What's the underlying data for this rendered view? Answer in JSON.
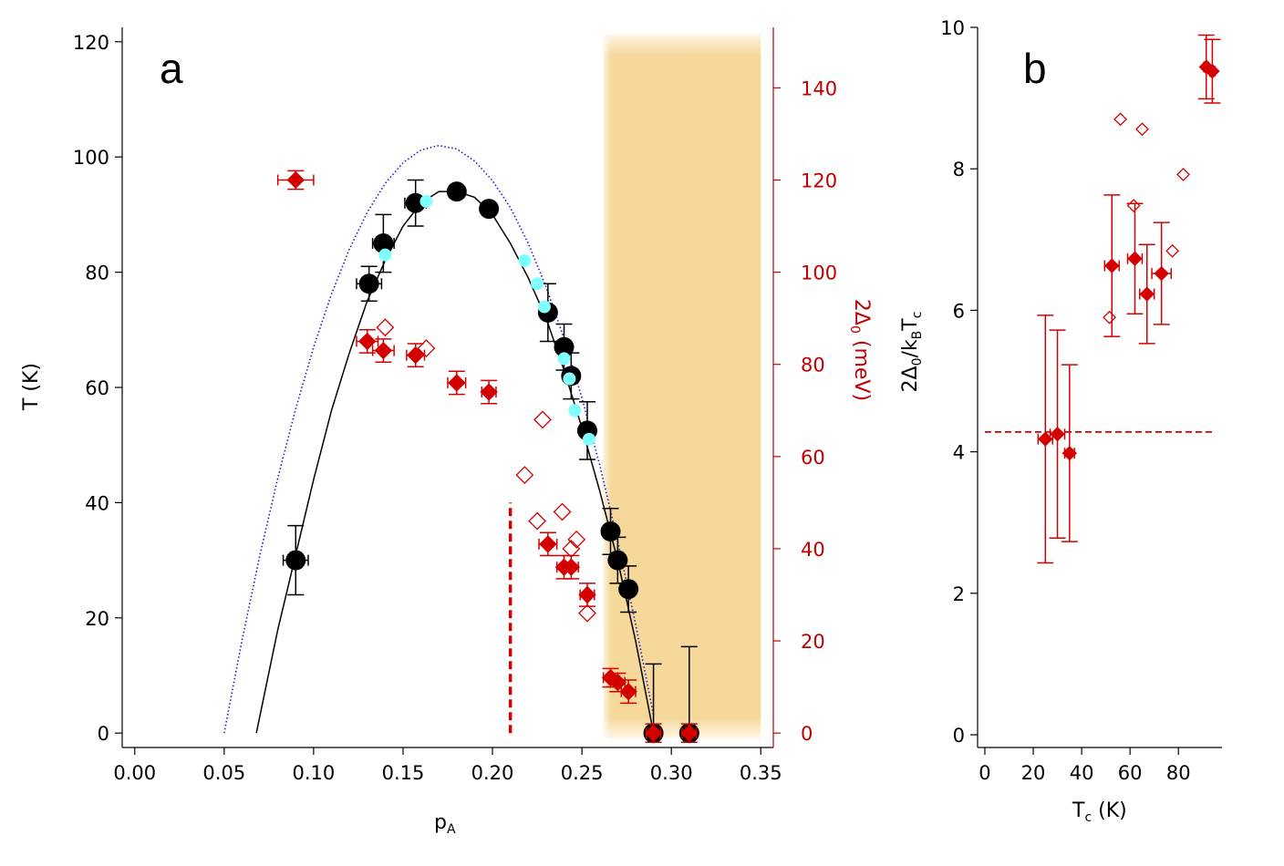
{
  "chart_data": [
    {
      "panel_label": "a",
      "type": "scatter",
      "xlabel": {
        "main": "p",
        "sub": "A"
      },
      "ylabel": "T (K)",
      "y2label": {
        "pre": "2Δ",
        "sub": "0",
        "post": " (meV)"
      },
      "xlim": [
        -0.007,
        0.357
      ],
      "ylim": [
        -2.5,
        122.5
      ],
      "y2lim": [
        -3.125,
        153.125
      ],
      "xticks": [
        "0.00",
        "0.05",
        "0.10",
        "0.15",
        "0.20",
        "0.25",
        "0.30",
        "0.35"
      ],
      "yticks": [
        "0",
        "20",
        "40",
        "60",
        "80",
        "100",
        "120"
      ],
      "y2ticks": [
        "0",
        "20",
        "40",
        "60",
        "80",
        "100",
        "120",
        "140"
      ],
      "shaded_region": {
        "x_from": 0.262,
        "x_to": 0.35,
        "color": "#f5d89a"
      },
      "series": [
        {
          "name": "Tc (black circles)",
          "axis": "left",
          "color": "#000000",
          "points": [
            {
              "x": 0.09,
              "y": 30,
              "xerr": 0.007,
              "yerr": [
                6,
                6
              ]
            },
            {
              "x": 0.131,
              "y": 78,
              "xerr": 0.007,
              "yerr": [
                3,
                3
              ]
            },
            {
              "x": 0.139,
              "y": 85,
              "xerr": 0.006,
              "yerr": [
                5,
                5
              ]
            },
            {
              "x": 0.157,
              "y": 92,
              "xerr": 0.006,
              "yerr": [
                4,
                4
              ]
            },
            {
              "x": 0.18,
              "y": 94
            },
            {
              "x": 0.198,
              "y": 91
            },
            {
              "x": 0.231,
              "y": 73,
              "yerr": [
                5,
                5
              ]
            },
            {
              "x": 0.24,
              "y": 67,
              "yerr": [
                4,
                4
              ]
            },
            {
              "x": 0.244,
              "y": 62,
              "yerr": [
                4,
                4
              ]
            },
            {
              "x": 0.253,
              "y": 52.5,
              "yerr": [
                5,
                5
              ]
            },
            {
              "x": 0.266,
              "y": 35,
              "yerr": [
                4,
                4
              ]
            },
            {
              "x": 0.27,
              "y": 30,
              "yerr": [
                4,
                4
              ]
            },
            {
              "x": 0.276,
              "y": 25,
              "yerr": [
                4,
                4
              ]
            },
            {
              "x": 0.29,
              "y": 0,
              "yerr": [
                0,
                12
              ]
            },
            {
              "x": 0.31,
              "y": 0,
              "yerr": [
                0,
                15
              ]
            }
          ]
        },
        {
          "name": "Tc (cyan circles)",
          "axis": "left",
          "color": "#7fffff",
          "points": [
            {
              "x": 0.14,
              "y": 83
            },
            {
              "x": 0.163,
              "y": 92.3
            },
            {
              "x": 0.218,
              "y": 82
            },
            {
              "x": 0.225,
              "y": 78
            },
            {
              "x": 0.229,
              "y": 74
            },
            {
              "x": 0.24,
              "y": 65
            },
            {
              "x": 0.243,
              "y": 61.5
            },
            {
              "x": 0.246,
              "y": 56
            },
            {
              "x": 0.254,
              "y": 51
            }
          ]
        },
        {
          "name": "2Δ0 (filled red diamonds)",
          "axis": "right",
          "color": "#d40000",
          "points": [
            {
              "x": 0.09,
              "y": 120,
              "xerr": 0.01,
              "yerr": 2
            },
            {
              "x": 0.13,
              "y": 85,
              "xerr": 0.006,
              "yerr": 2.5
            },
            {
              "x": 0.139,
              "y": 83,
              "xerr": 0.006,
              "yerr": 2.5
            },
            {
              "x": 0.157,
              "y": 82,
              "xerr": 0.005,
              "yerr": 2.5
            },
            {
              "x": 0.18,
              "y": 76,
              "xerr": 0.005,
              "yerr": 2.5
            },
            {
              "x": 0.198,
              "y": 74,
              "xerr": 0.004,
              "yerr": 2.5
            },
            {
              "x": 0.231,
              "y": 41,
              "xerr": 0.005,
              "yerr": 2.5
            },
            {
              "x": 0.24,
              "y": 36,
              "xerr": 0.004,
              "yerr": 2.5
            },
            {
              "x": 0.244,
              "y": 36,
              "xerr": 0.004,
              "yerr": 2.5
            },
            {
              "x": 0.253,
              "y": 30,
              "xerr": 0.004,
              "yerr": 2.5
            },
            {
              "x": 0.266,
              "y": 12,
              "xerr": 0.004,
              "yerr": 2
            },
            {
              "x": 0.27,
              "y": 11,
              "xerr": 0.004,
              "yerr": 2
            },
            {
              "x": 0.276,
              "y": 9,
              "xerr": 0.004,
              "yerr": 2.5
            },
            {
              "x": 0.29,
              "y": 0,
              "xerr": 0.004,
              "yerr": 2
            },
            {
              "x": 0.31,
              "y": 0,
              "xerr": 0.004,
              "yerr": 2
            }
          ]
        },
        {
          "name": "2Δ0 (open red diamonds)",
          "axis": "right",
          "color": "#d40000",
          "points": [
            {
              "x": 0.14,
              "y": 88
            },
            {
              "x": 0.163,
              "y": 83.5
            },
            {
              "x": 0.218,
              "y": 56
            },
            {
              "x": 0.225,
              "y": 46
            },
            {
              "x": 0.228,
              "y": 68
            },
            {
              "x": 0.239,
              "y": 48
            },
            {
              "x": 0.244,
              "y": 40
            },
            {
              "x": 0.247,
              "y": 42
            },
            {
              "x": 0.253,
              "y": 26
            }
          ]
        }
      ],
      "curves": [
        {
          "name": "black solid dome",
          "color": "#000000",
          "style": "solid",
          "points": [
            [
              0.068,
              0
            ],
            [
              0.08,
              18
            ],
            [
              0.09,
              31
            ],
            [
              0.1,
              44
            ],
            [
              0.11,
              56
            ],
            [
              0.12,
              66
            ],
            [
              0.13,
              75
            ],
            [
              0.14,
              82
            ],
            [
              0.15,
              88
            ],
            [
              0.16,
              92
            ],
            [
              0.17,
              94
            ],
            [
              0.18,
              94
            ],
            [
              0.19,
              93
            ],
            [
              0.2,
              90
            ],
            [
              0.21,
              85
            ],
            [
              0.22,
              79
            ],
            [
              0.23,
              72
            ],
            [
              0.24,
              63
            ],
            [
              0.25,
              53
            ],
            [
              0.26,
              42
            ],
            [
              0.27,
              30
            ],
            [
              0.28,
              16
            ],
            [
              0.29,
              0
            ]
          ]
        },
        {
          "name": "blue dotted dome",
          "color": "#1a1acc",
          "style": "dotted",
          "points": [
            [
              0.05,
              0
            ],
            [
              0.06,
              16.1
            ],
            [
              0.07,
              30.9
            ],
            [
              0.08,
              44.3
            ],
            [
              0.09,
              56.3
            ],
            [
              0.1,
              67
            ],
            [
              0.11,
              76.2
            ],
            [
              0.12,
              84
            ],
            [
              0.13,
              90.4
            ],
            [
              0.14,
              95.4
            ],
            [
              0.15,
              99
            ],
            [
              0.16,
              101.2
            ],
            [
              0.17,
              102
            ],
            [
              0.18,
              101.4
            ],
            [
              0.19,
              99.3
            ],
            [
              0.2,
              95.9
            ],
            [
              0.21,
              91.2
            ],
            [
              0.22,
              85
            ],
            [
              0.23,
              77.4
            ],
            [
              0.24,
              68.5
            ],
            [
              0.25,
              58.2
            ],
            [
              0.26,
              46.5
            ],
            [
              0.27,
              33.4
            ],
            [
              0.28,
              18.9
            ],
            [
              0.29,
              3.1
            ]
          ]
        }
      ],
      "vertical_marker": {
        "x": 0.21,
        "y_from": 0,
        "y_to": 40,
        "color": "#d40000",
        "style": "dashed"
      }
    },
    {
      "panel_label": "b",
      "type": "scatter",
      "xlabel": {
        "main": "T",
        "sub": "c",
        "post": " (K)"
      },
      "ylabel": {
        "pre": "2Δ",
        "sub1": "0",
        "mid": "/k",
        "sub2": "B",
        "post": "T",
        "sub3": "c"
      },
      "xlim": [
        -3,
        98
      ],
      "ylim": [
        -0.18,
        10.0
      ],
      "xticks": [
        "0",
        "20",
        "40",
        "60",
        "80"
      ],
      "yticks": [
        "0",
        "2",
        "4",
        "6",
        "8",
        "10"
      ],
      "reference_line": {
        "y": 4.28,
        "color": "#d40000",
        "style": "dashed"
      },
      "series": [
        {
          "name": "filled red diamonds",
          "color": "#d40000",
          "points": [
            {
              "x": 25,
              "y": 4.18,
              "xerr": 3,
              "yerr": 1.75
            },
            {
              "x": 30,
              "y": 4.25,
              "xerr": 3,
              "yerr": 1.47
            },
            {
              "x": 35,
              "y": 3.98,
              "xerr": 2,
              "yerr": 1.25
            },
            {
              "x": 52.5,
              "y": 6.63,
              "xerr": 3,
              "yerr": 1.0
            },
            {
              "x": 62,
              "y": 6.73,
              "xerr": 3,
              "yerr": 0.78
            },
            {
              "x": 67,
              "y": 6.23,
              "xerr": 3,
              "yerr": 0.7
            },
            {
              "x": 73,
              "y": 6.52,
              "xerr": 4,
              "yerr": 0.72
            },
            {
              "x": 91.5,
              "y": 9.44,
              "xerr": 1,
              "yerr": 0.45
            },
            {
              "x": 94,
              "y": 9.38,
              "xerr": 1,
              "yerr": 0.45
            }
          ]
        },
        {
          "name": "open red diamonds",
          "color": "#d40000",
          "points": [
            {
              "x": 51.5,
              "y": 5.9
            },
            {
              "x": 56,
              "y": 8.7
            },
            {
              "x": 61.5,
              "y": 7.48
            },
            {
              "x": 65,
              "y": 8.56
            },
            {
              "x": 77.5,
              "y": 6.84
            },
            {
              "x": 82,
              "y": 7.92
            }
          ]
        }
      ]
    }
  ]
}
